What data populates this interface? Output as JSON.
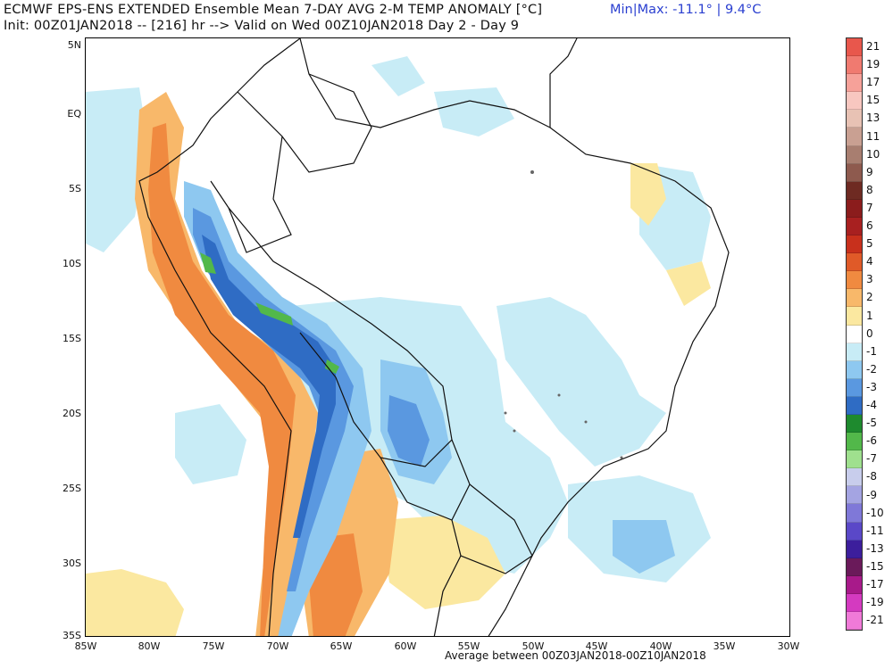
{
  "header": {
    "title": "ECMWF EPS-ENS EXTENDED Ensemble Mean 7-DAY AVG 2-M TEMP ANOMALY [°C]",
    "init_line": "Init: 00Z01JAN2018 -- [216] hr --> Valid on Wed 00Z10JAN2018  Day 2 - Day 9",
    "minmax": "Min|Max: -11.1° | 9.4°C"
  },
  "map": {
    "lat_labels": [
      "5N",
      "EQ",
      "5S",
      "10S",
      "15S",
      "20S",
      "25S",
      "30S",
      "35S"
    ],
    "lon_labels": [
      "85W",
      "80W",
      "75W",
      "70W",
      "65W",
      "60W",
      "55W",
      "50W",
      "45W",
      "40W",
      "35W",
      "30W"
    ],
    "footer": "Average between 00Z03JAN2018-00Z10JAN2018"
  },
  "colorbar": {
    "labels": [
      "21",
      "19",
      "17",
      "15",
      "13",
      "11",
      "10",
      "9",
      "8",
      "7",
      "6",
      "5",
      "4",
      "3",
      "2",
      "1",
      "0",
      "-1",
      "-2",
      "-3",
      "-4",
      "-5",
      "-6",
      "-7",
      "-8",
      "-9",
      "-10",
      "-11",
      "-13",
      "-15",
      "-17",
      "-19",
      "-21"
    ],
    "colors": [
      "#e8574c",
      "#f07a70",
      "#f6a199",
      "#f8c7c0",
      "#e8c2b4",
      "#c9a092",
      "#a87e70",
      "#8e5a4e",
      "#6e2a22",
      "#8b1c1c",
      "#a82020",
      "#c8301c",
      "#e05a28",
      "#f08a40",
      "#f8b86a",
      "#fbe8a0",
      "#ffffff",
      "#c8ecf6",
      "#8ec8f0",
      "#5a98e0",
      "#2f6cc4",
      "#1e8a2e",
      "#52b84a",
      "#9fe08e",
      "#c8cdec",
      "#a4a4e2",
      "#7f78d8",
      "#5a48c8",
      "#3c1e9c",
      "#6a1a5a",
      "#a81a8a",
      "#d43ac0",
      "#f07ad8"
    ]
  }
}
